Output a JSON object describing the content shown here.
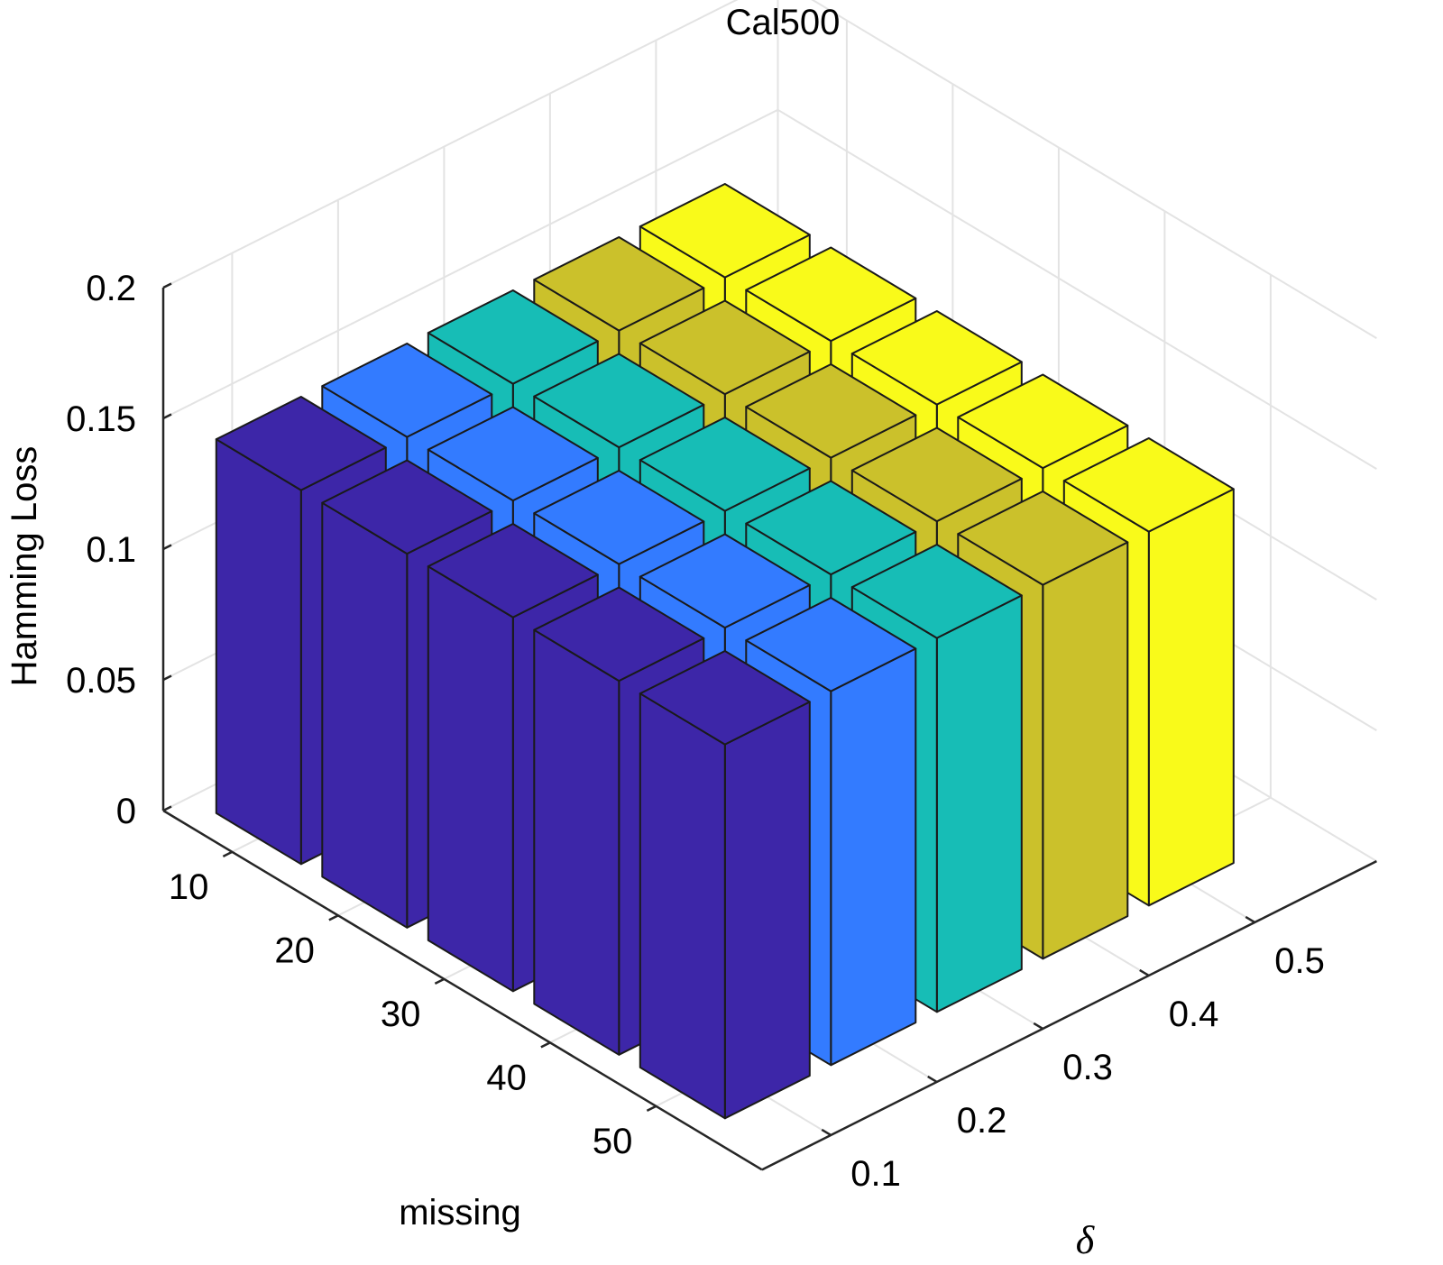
{
  "chart_data": {
    "type": "bar3d",
    "title": "Cal500",
    "xlabel": "missing",
    "ylabel": "δ",
    "zlabel": "Hamming Loss",
    "x_categories": [
      "10",
      "20",
      "30",
      "40",
      "50"
    ],
    "y_categories": [
      "0.1",
      "0.2",
      "0.3",
      "0.4",
      "0.5"
    ],
    "z_ticks": [
      "0",
      "0.05",
      "0.1",
      "0.15",
      "0.2"
    ],
    "zlim": [
      0,
      0.2
    ],
    "grid": true,
    "colors": [
      "#3d26a8",
      "#337bff",
      "#17bdb6",
      "#cbc12b",
      "#f9fa1a"
    ],
    "series": [
      {
        "values": [
          0.143,
          0.143,
          0.143,
          0.143,
          0.143
        ]
      },
      {
        "values": [
          0.143,
          0.143,
          0.143,
          0.143,
          0.143
        ]
      },
      {
        "values": [
          0.143,
          0.143,
          0.143,
          0.143,
          0.143
        ]
      },
      {
        "values": [
          0.143,
          0.143,
          0.143,
          0.143,
          0.143
        ]
      },
      {
        "values": [
          0.143,
          0.143,
          0.143,
          0.143,
          0.143
        ]
      }
    ]
  }
}
